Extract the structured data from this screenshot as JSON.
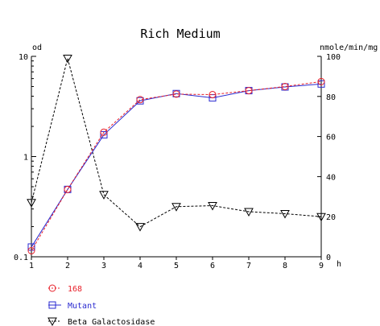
{
  "chart_data": {
    "type": "line",
    "title": "Rich Medium",
    "xlabel": "h",
    "ylabel_left": "od",
    "ylabel_right": "nmole/min/mg",
    "x": [
      1,
      2,
      3,
      4,
      5,
      6,
      7,
      8,
      9
    ],
    "x_ticks": [
      "1",
      "2",
      "3",
      "4",
      "5",
      "6",
      "7",
      "8",
      "9"
    ],
    "y_left_scale": "log",
    "y_left_range": [
      0.1,
      10
    ],
    "y_left_ticks": [
      "0.1",
      "1",
      "10"
    ],
    "y_right_range": [
      0,
      100
    ],
    "y_right_ticks": [
      "0",
      "20",
      "40",
      "60",
      "80",
      "100"
    ],
    "grid": false,
    "legend_position": "bottom-left",
    "series": [
      {
        "name": "168",
        "axis": "left",
        "marker": "circle",
        "color": "#e8202a",
        "line": "dashed",
        "values": [
          0.115,
          0.47,
          1.75,
          3.7,
          4.2,
          4.15,
          4.55,
          5.0,
          5.6
        ]
      },
      {
        "name": "Mutant",
        "axis": "left",
        "marker": "square",
        "color": "#2a2ad0",
        "line": "solid",
        "values": [
          0.125,
          0.47,
          1.65,
          3.6,
          4.25,
          3.85,
          4.55,
          4.95,
          5.3
        ]
      },
      {
        "name": "Beta Galactosidase",
        "axis": "right",
        "marker": "triangle-down",
        "color": "#000000",
        "line": "dashed",
        "values": [
          27,
          99,
          31,
          15,
          25,
          25.5,
          22.5,
          21.5,
          20
        ]
      }
    ]
  }
}
